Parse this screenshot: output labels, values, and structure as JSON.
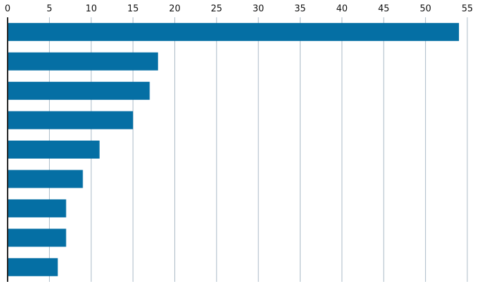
{
  "chart_data": {
    "type": "bar",
    "orientation": "horizontal",
    "categories": [
      null,
      null,
      null,
      null,
      null,
      null,
      null,
      null,
      null
    ],
    "values": [
      54,
      18,
      17,
      15,
      11,
      9,
      7,
      7,
      6
    ],
    "color": "#056fa4",
    "xlim": [
      0,
      55
    ],
    "xticks": [
      0,
      5,
      10,
      15,
      20,
      25,
      30,
      35,
      40,
      45,
      50,
      55
    ],
    "grid": true
  }
}
